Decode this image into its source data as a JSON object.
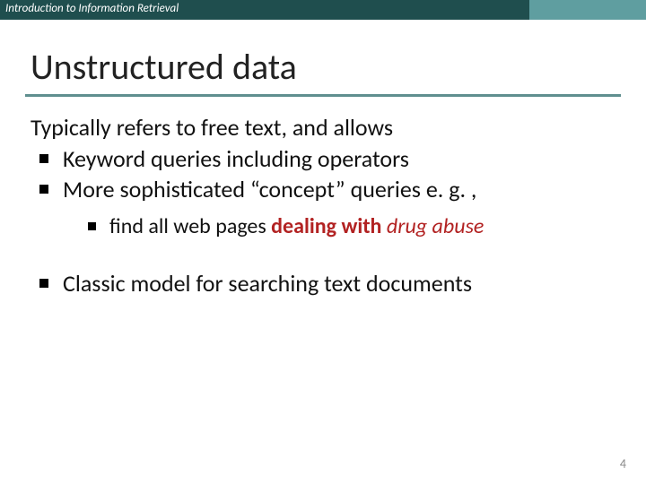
{
  "header": {
    "course": "Introduction to Information Retrieval"
  },
  "title": "Unstructured data",
  "intro": "Typically refers to free text, and allows",
  "bullets": {
    "b1": "Keyword queries including operators",
    "b2": "More sophisticated “concept” queries e. g. ,",
    "sub1_prefix": "find all web pages ",
    "sub1_bold": "dealing with",
    "sub1_space": " ",
    "sub1_italic": "drug abuse",
    "b3": "Classic model for searching text documents"
  },
  "page_number": "4",
  "colors": {
    "header_bg": "#1f4e4e",
    "header_accent": "#5f9ea0",
    "title_underline": "#5f8f8f",
    "highlight": "#b22222"
  },
  "fontsizes": {
    "header": 13,
    "title": 40,
    "body": 26,
    "sub": 24,
    "pagenum": 14
  }
}
